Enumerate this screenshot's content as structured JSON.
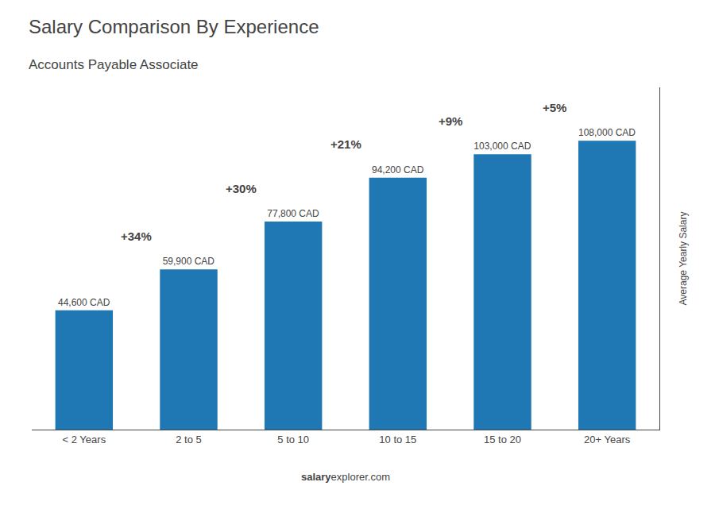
{
  "chart_data": {
    "type": "bar",
    "title": "Salary Comparison By Experience",
    "subtitle": "Accounts Payable Associate",
    "categories": [
      "< 2 Years",
      "2 to 5",
      "5 to 10",
      "10 to 15",
      "15 to 20",
      "20+ Years"
    ],
    "values": [
      44600,
      59900,
      77800,
      94200,
      103000,
      108000
    ],
    "value_labels": [
      "44,600 CAD",
      "59,900 CAD",
      "77,800 CAD",
      "94,200 CAD",
      "103,000 CAD",
      "108,000 CAD"
    ],
    "data_labels": true,
    "ylabel": "Average Yearly Salary",
    "ylim": [
      0,
      128000
    ],
    "yticks": [],
    "tick_labels": "x",
    "grid": false,
    "change_labels": [
      "+34%",
      "+30%",
      "+21%",
      "+9%",
      "+5%"
    ],
    "footer": [
      "salary",
      "explorer.com"
    ]
  }
}
